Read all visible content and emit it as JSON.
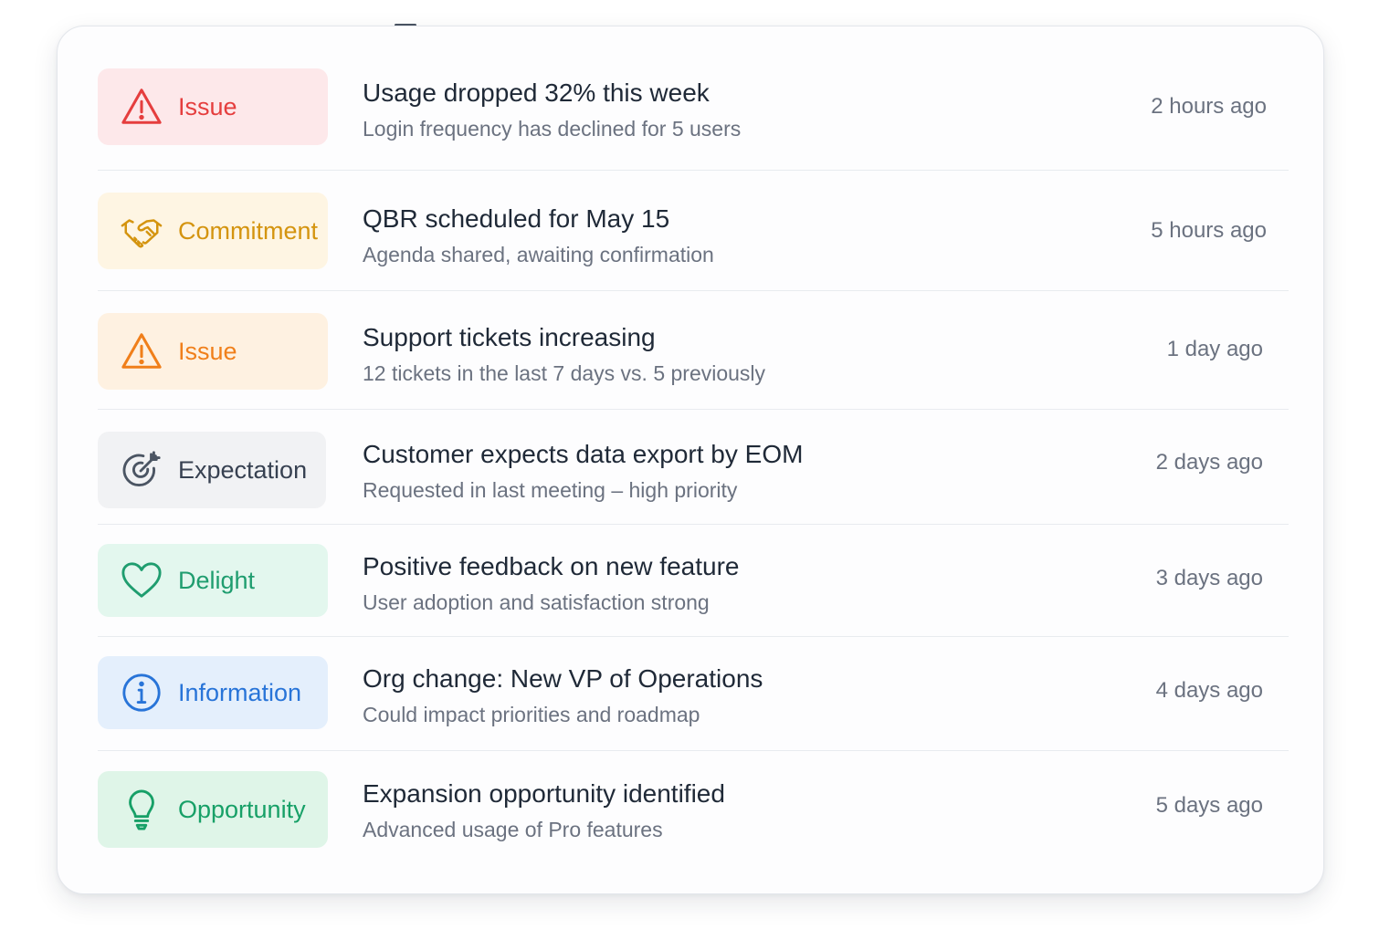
{
  "colors": {
    "issue_red": "#e53e3e",
    "issue_red_bg": "#fde8ea",
    "commitment_gold": "#d4940f",
    "commitment_bg": "#fef5e3",
    "issue_orange": "#f07f1a",
    "issue_orange_bg": "#fef1e1",
    "expectation_gray": "#4b5563",
    "expectation_bg": "#f1f2f4",
    "delight_green": "#1f9d6f",
    "delight_bg": "#e3f7ee",
    "information_blue": "#2874d8",
    "information_bg": "#e4effc",
    "opportunity_green": "#17a067",
    "opportunity_bg": "#dff5e8"
  },
  "items": [
    {
      "tag": "Issue",
      "icon": "warning-triangle-icon",
      "title": "Usage dropped 32% this week",
      "subtitle": "Login frequency has declined for 5 users",
      "time": "2 hours ago"
    },
    {
      "tag": "Commitment",
      "icon": "handshake-icon",
      "title": "QBR scheduled for May 15",
      "subtitle": "Agenda shared, awaiting confirmation",
      "time": "5 hours ago"
    },
    {
      "tag": "Issue",
      "icon": "warning-triangle-icon",
      "title": "Support tickets increasing",
      "subtitle": "12 tickets in the last 7 days vs. 5 previously",
      "time": "1 day ago"
    },
    {
      "tag": "Expectation",
      "icon": "target-arrow-icon",
      "title": "Customer expects data export by EOM",
      "subtitle": "Requested in last meeting – high priority",
      "time": "2 days ago"
    },
    {
      "tag": "Delight",
      "icon": "heart-icon",
      "title": "Positive feedback on new feature",
      "subtitle": "User adoption and satisfaction strong",
      "time": "3 days ago"
    },
    {
      "tag": "Information",
      "icon": "info-circle-icon",
      "title": "Org change: New VP of Operations",
      "subtitle": "Could impact priorities and roadmap",
      "time": "4 days ago"
    },
    {
      "tag": "Opportunity",
      "icon": "lightbulb-icon",
      "title": "Expansion opportunity identified",
      "subtitle": "Advanced usage of Pro features",
      "time": "5 days ago"
    }
  ]
}
